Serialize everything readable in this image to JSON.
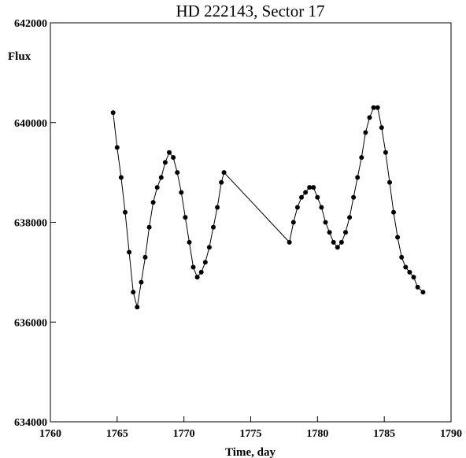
{
  "chart_data": {
    "type": "scatter",
    "title": "HD 222143, Sector 17",
    "xlabel": "Time, day",
    "ylabel": "Flux",
    "xlim": [
      1760,
      1790
    ],
    "ylim": [
      634000,
      642000
    ],
    "x_ticks": [
      1760,
      1765,
      1770,
      1775,
      1780,
      1785,
      1790
    ],
    "x_tick_labels": [
      "1760",
      "1765",
      "1770",
      "1775",
      "1780",
      "1785",
      "1790"
    ],
    "y_ticks": [
      634000,
      636000,
      638000,
      640000,
      642000
    ],
    "y_tick_labels": [
      "634000",
      "636000",
      "638000",
      "640000",
      "642000"
    ],
    "grid": false,
    "legend": "none",
    "marker_color": "#000000",
    "line_color": "#000000",
    "series": [
      {
        "x": [
          1764.7,
          1765.0,
          1765.3,
          1765.6,
          1765.9,
          1766.2,
          1766.5,
          1766.8,
          1767.1,
          1767.4,
          1767.7,
          1768.0,
          1768.3,
          1768.6,
          1768.9,
          1769.2,
          1769.5,
          1769.8,
          1770.1,
          1770.4,
          1770.7,
          1771.0,
          1771.3,
          1771.6,
          1771.9,
          1772.2,
          1772.5,
          1772.8,
          1773.0,
          1777.9,
          1778.2,
          1778.5,
          1778.8,
          1779.1,
          1779.4,
          1779.7,
          1780.0,
          1780.3,
          1780.6,
          1780.9,
          1781.2,
          1781.5,
          1781.8,
          1782.1,
          1782.4,
          1782.7,
          1783.0,
          1783.3,
          1783.6,
          1783.9,
          1784.2,
          1784.5,
          1784.8,
          1785.1,
          1785.4,
          1785.7,
          1786.0,
          1786.3,
          1786.6,
          1786.9,
          1787.2,
          1787.5,
          1787.9
        ],
        "y": [
          640200,
          639500,
          638900,
          638200,
          637400,
          636600,
          636300,
          636800,
          637300,
          637900,
          638400,
          638700,
          638900,
          639200,
          639400,
          639300,
          639000,
          638600,
          638100,
          637600,
          637100,
          636900,
          637000,
          637200,
          637500,
          637900,
          638300,
          638800,
          639000,
          637600,
          638000,
          638300,
          638500,
          638600,
          638700,
          638700,
          638500,
          638300,
          638000,
          637800,
          637600,
          637500,
          637600,
          637800,
          638100,
          638500,
          638900,
          639300,
          639800,
          640100,
          640300,
          640300,
          639900,
          639400,
          638800,
          638200,
          637700,
          637300,
          637100,
          637000,
          636900,
          636700,
          636600
        ]
      }
    ]
  }
}
